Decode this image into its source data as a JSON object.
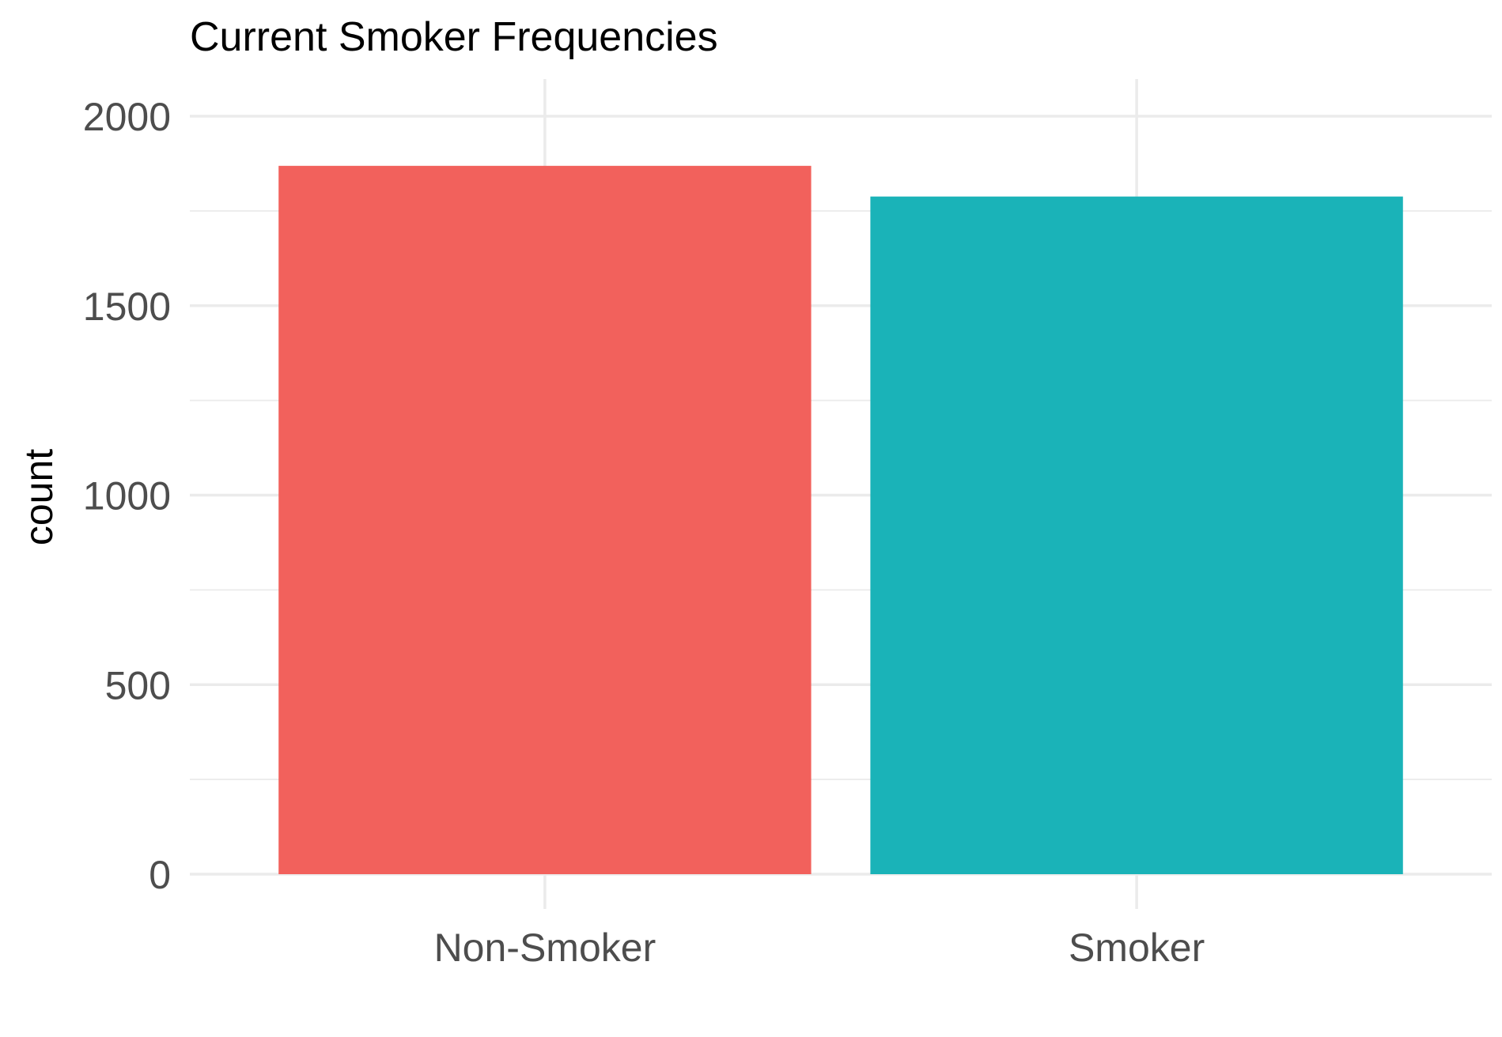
{
  "chart_data": {
    "type": "bar",
    "title": "Current Smoker Frequencies",
    "xlabel": "",
    "ylabel": "count",
    "categories": [
      "Non-Smoker",
      "Smoker"
    ],
    "values": [
      1869,
      1788
    ],
    "ylim": [
      0,
      2000
    ],
    "yticks": [
      0,
      500,
      1000,
      1500,
      2000
    ],
    "ytick_labels": [
      "0",
      "500",
      "1000",
      "1500",
      "2000"
    ],
    "colors": [
      "#F2615C",
      "#1AB3B8"
    ],
    "grid": true,
    "legend": false
  }
}
